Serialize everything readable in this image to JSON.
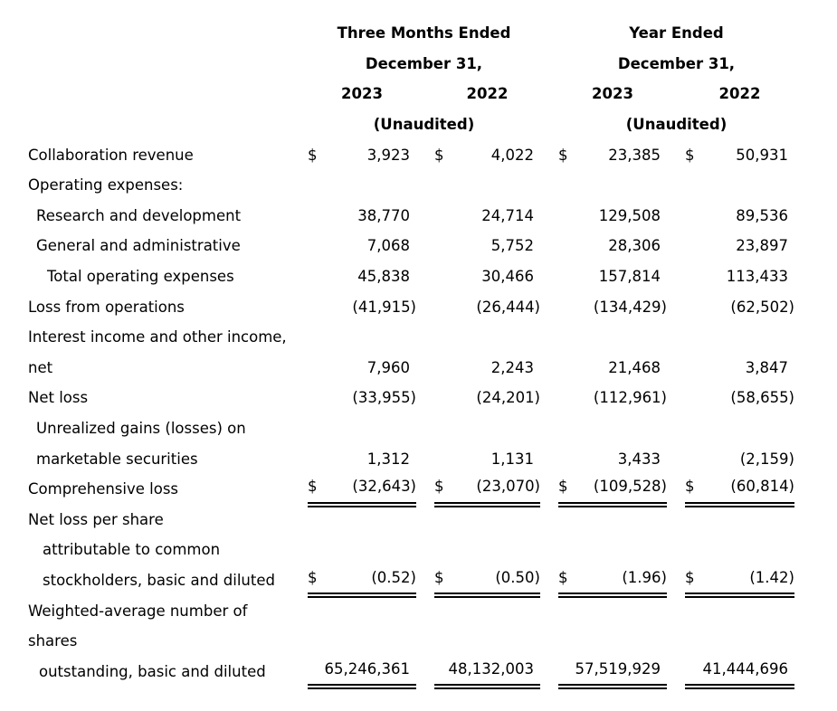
{
  "colors": {
    "text": "#000000",
    "background": "#ffffff"
  },
  "header": {
    "groups": [
      {
        "period": "Three Months Ended",
        "date": "December 31,",
        "years": [
          "2023",
          "2022"
        ],
        "note": "(Unaudited)"
      },
      {
        "period": "Year Ended",
        "date": "December 31,",
        "years": [
          "2023",
          "2022"
        ],
        "note": "(Unaudited)"
      }
    ]
  },
  "rows": [
    {
      "label": "Collaboration revenue",
      "indent": 0,
      "dollar": true,
      "rule": false,
      "values": [
        "3,923",
        "4,022",
        "23,385",
        "50,931"
      ]
    },
    {
      "label": "Operating expenses:",
      "indent": 0,
      "dollar": false,
      "rule": false,
      "values": null
    },
    {
      "label": "Research and development",
      "indent": 1,
      "dollar": false,
      "rule": false,
      "values": [
        "38,770",
        "24,714",
        "129,508",
        "89,536"
      ]
    },
    {
      "label": "General and administrative",
      "indent": 1,
      "dollar": false,
      "rule": false,
      "values": [
        "7,068",
        "5,752",
        "28,306",
        "23,897"
      ]
    },
    {
      "label": "Total operating expenses",
      "indent": 4,
      "dollar": false,
      "rule": false,
      "values": [
        "45,838",
        "30,466",
        "157,814",
        "113,433"
      ]
    },
    {
      "label": "Loss from operations",
      "indent": 0,
      "dollar": false,
      "rule": false,
      "values": [
        "(41,915)",
        "(26,444)",
        "(134,429)",
        "(62,502)"
      ]
    },
    {
      "label": "Interest income and other income,",
      "indent": 0,
      "dollar": false,
      "rule": false,
      "values": null
    },
    {
      "label": "net",
      "indent": 0,
      "dollar": false,
      "rule": false,
      "values": [
        "7,960",
        "2,243",
        "21,468",
        "3,847"
      ]
    },
    {
      "label": "Net loss",
      "indent": 0,
      "dollar": false,
      "rule": false,
      "values": [
        "(33,955)",
        "(24,201)",
        "(112,961)",
        "(58,655)"
      ]
    },
    {
      "label": "Unrealized gains (losses) on",
      "indent": 1,
      "dollar": false,
      "rule": false,
      "values": null
    },
    {
      "label": "marketable securities",
      "indent": 1,
      "dollar": false,
      "rule": false,
      "values": [
        "1,312",
        "1,131",
        "3,433",
        "(2,159)"
      ]
    },
    {
      "label": "Comprehensive loss",
      "indent": 0,
      "dollar": true,
      "rule": true,
      "values": [
        "(32,643)",
        "(23,070)",
        "(109,528)",
        "(60,814)"
      ]
    },
    {
      "label": "Net loss per share",
      "indent": 0,
      "dollar": false,
      "rule": false,
      "values": null
    },
    {
      "label": "attributable to common",
      "indent": 3,
      "dollar": false,
      "rule": false,
      "values": null
    },
    {
      "label": "stockholders, basic and diluted",
      "indent": 3,
      "dollar": true,
      "rule": true,
      "values": [
        "(0.52)",
        "(0.50)",
        "(1.96)",
        "(1.42)"
      ]
    },
    {
      "label": "Weighted-average number of",
      "indent": 0,
      "dollar": false,
      "rule": false,
      "values": null
    },
    {
      "label": "shares",
      "indent": 0,
      "dollar": false,
      "rule": false,
      "values": null
    },
    {
      "label": "outstanding, basic and diluted",
      "indent": 2,
      "dollar": false,
      "rule": true,
      "values": [
        "65,246,361",
        "48,132,003",
        "57,519,929",
        "41,444,696"
      ]
    }
  ]
}
